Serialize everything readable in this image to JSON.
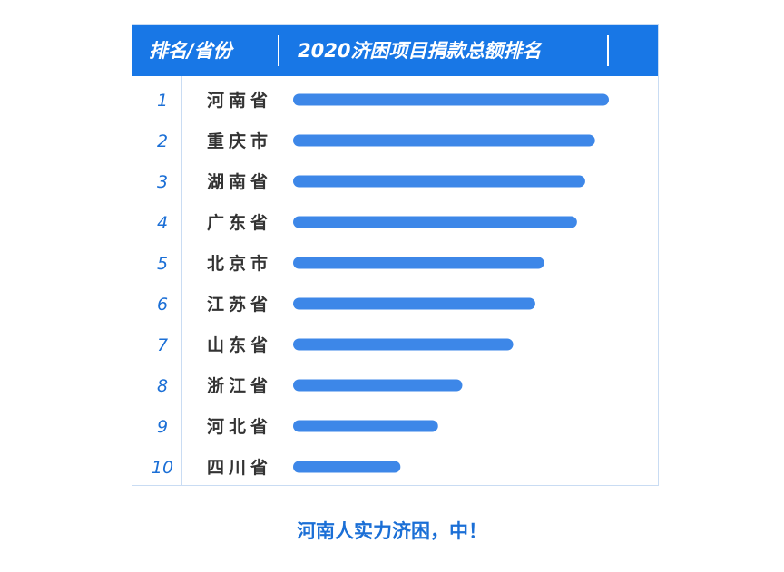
{
  "header": {
    "col1": "排名/省份",
    "col2": "2020济困项目捐款总额排名"
  },
  "caption": "河南人实力济困，中！",
  "colors": {
    "accent": "#1877e6",
    "bar": "#3d87e8",
    "text": "#333333"
  },
  "chart_data": {
    "type": "bar",
    "orientation": "horizontal",
    "title": "2020济困项目捐款总额排名",
    "ranks": [
      "1",
      "2",
      "3",
      "4",
      "5",
      "6",
      "7",
      "8",
      "9",
      "10"
    ],
    "categories": [
      "河南省",
      "重庆市",
      "湖南省",
      "广东省",
      "北京市",
      "江苏省",
      "山东省",
      "浙江省",
      "河北省",
      "四川省"
    ],
    "values": [
      100,
      95.6,
      92.5,
      89.9,
      79.5,
      76.7,
      69.7,
      53.6,
      45.9,
      34.0
    ],
    "xlim": [
      0,
      100
    ],
    "grid": false,
    "value_labels_shown": false
  }
}
